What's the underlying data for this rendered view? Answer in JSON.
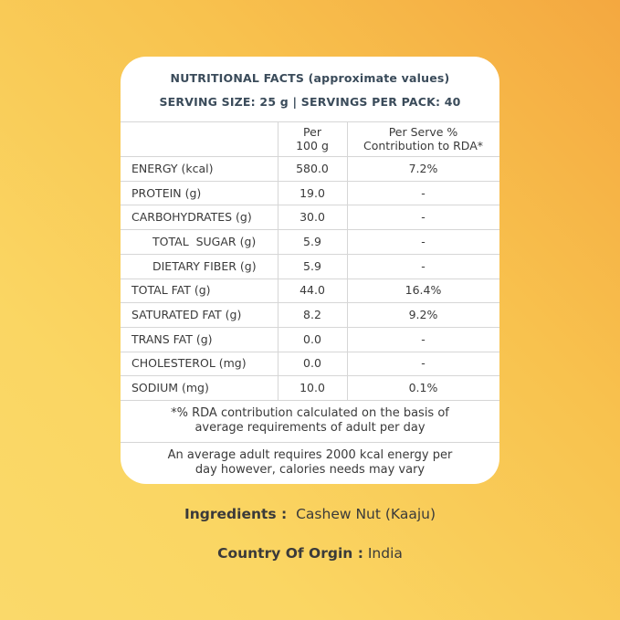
{
  "header": {
    "title": "NUTRITIONAL FACTS (approximate values)",
    "serving": "SERVING SIZE: 25 g | SERVINGS PER PACK: 40"
  },
  "columns": {
    "per100_line1": "Per",
    "per100_line2": "100 g",
    "rda_line1": "Per Serve %",
    "rda_line2": "Contribution to RDA*"
  },
  "rows": [
    {
      "label": "ENERGY (kcal)",
      "per100": "580.0",
      "rda": "7.2%"
    },
    {
      "label": "PROTEIN (g)",
      "per100": "19.0",
      "rda": "-"
    },
    {
      "label": "CARBOHYDRATES (g)",
      "per100": "30.0",
      "rda": "-"
    },
    {
      "label": "TOTAL  SUGAR (g)",
      "per100": "5.9",
      "rda": "-"
    },
    {
      "label": "DIETARY FIBER (g)",
      "per100": "5.9",
      "rda": "-"
    },
    {
      "label": "TOTAL FAT (g)",
      "per100": "44.0",
      "rda": "16.4%"
    },
    {
      "label": "SATURATED FAT (g)",
      "per100": "8.2",
      "rda": "9.2%"
    },
    {
      "label": "TRANS FAT (g)",
      "per100": "0.0",
      "rda": "-"
    },
    {
      "label": "CHOLESTEROL (mg)",
      "per100": "0.0",
      "rda": "-"
    },
    {
      "label": "SODIUM (mg)",
      "per100": "10.0",
      "rda": "0.1%"
    }
  ],
  "notes": {
    "rda_line1": "*% RDA contribution calculated on the basis of",
    "rda_line2": "average requirements of adult per day",
    "kcal_line1": "An average adult requires 2000 kcal energy per",
    "kcal_line2": "day however, calories needs may vary"
  },
  "ingredients": {
    "label": "Ingredients :",
    "value": "Cashew Nut (Kaaju)"
  },
  "origin": {
    "label": "Country Of Orgin :",
    "value": "India"
  }
}
